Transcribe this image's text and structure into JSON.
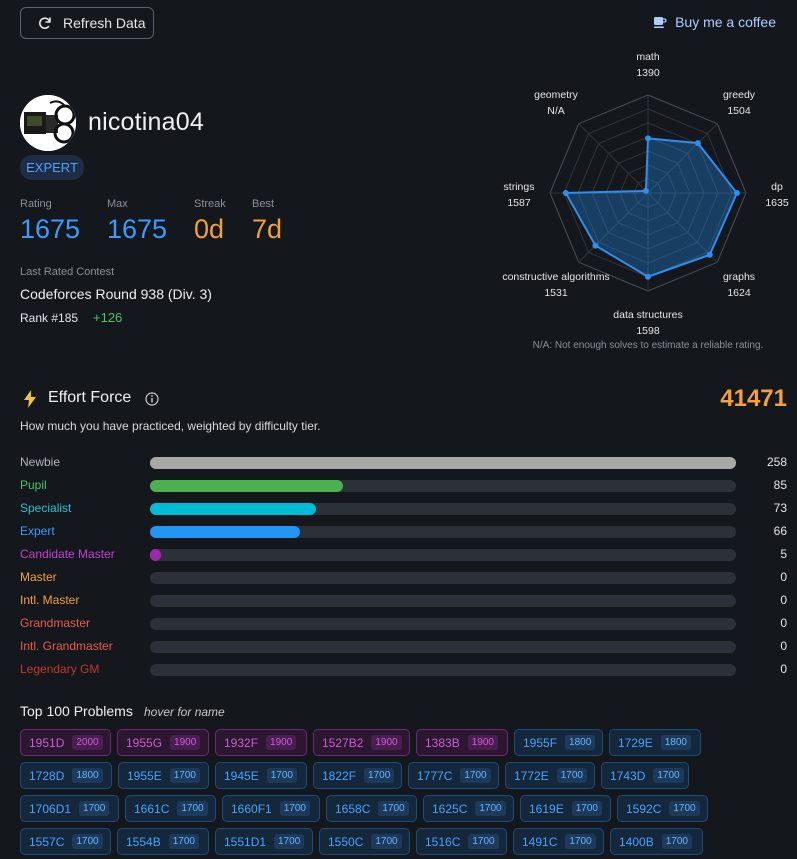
{
  "header": {
    "refresh_label": "Refresh Data",
    "coffee_label": "Buy me a coffee"
  },
  "profile": {
    "handle": "nicotina04",
    "rank": "EXPERT",
    "stats": [
      {
        "label": "Rating",
        "value": "1675",
        "color": "#3b9bff"
      },
      {
        "label": "Max",
        "value": "1675",
        "color": "#3b9bff"
      },
      {
        "label": "Streak",
        "value": "0d",
        "color": "#f4a03a"
      },
      {
        "label": "Best",
        "value": "7d",
        "color": "#f4a03a"
      }
    ],
    "last_contest_label": "Last Rated Contest",
    "last_contest_name": "Codeforces Round 938 (Div. 3)",
    "last_contest_rank": "Rank #185",
    "last_contest_delta": "+126"
  },
  "radar": {
    "axes": [
      {
        "name": "math",
        "value_label": "1390",
        "value": 1390
      },
      {
        "name": "greedy",
        "value_label": "1504",
        "value": 1504
      },
      {
        "name": "dp",
        "value_label": "1635",
        "value": 1635
      },
      {
        "name": "graphs",
        "value_label": "1624",
        "value": 1624
      },
      {
        "name": "data structures",
        "value_label": "1598",
        "value": 1598
      },
      {
        "name": "constructive algorithms",
        "value_label": "1531",
        "value": 1531
      },
      {
        "name": "strings",
        "value_label": "1587",
        "value": 1587
      },
      {
        "name": "geometry",
        "value_label": "N/A",
        "value": null
      }
    ],
    "note": "N/A: Not enough solves to estimate a reliable rating."
  },
  "effort": {
    "title": "Effort Force",
    "total": "41471",
    "description": "How much you have practiced, weighted by difficulty tier.",
    "max": 258,
    "tiers": [
      {
        "name": "Newbie",
        "count": 258,
        "count_label": "258",
        "color": "#b5b5b5",
        "fill": "#a8a8a8"
      },
      {
        "name": "Pupil",
        "count": 85,
        "count_label": "85",
        "color": "#4cc56a",
        "fill": "#4caf50"
      },
      {
        "name": "Specialist",
        "count": 73,
        "count_label": "73",
        "color": "#22c3d8",
        "fill": "#00bcd4"
      },
      {
        "name": "Expert",
        "count": 66,
        "count_label": "66",
        "color": "#3b9bff",
        "fill": "#2196f3"
      },
      {
        "name": "Candidate Master",
        "count": 5,
        "count_label": "5",
        "color": "#c542cf",
        "fill": "#9c27b0"
      },
      {
        "name": "Master",
        "count": 0,
        "count_label": "0",
        "color": "#f4a03a",
        "fill": "#ff9800"
      },
      {
        "name": "Intl. Master",
        "count": 0,
        "count_label": "0",
        "color": "#f4a03a",
        "fill": "#ff9800"
      },
      {
        "name": "Grandmaster",
        "count": 0,
        "count_label": "0",
        "color": "#ef5a4a",
        "fill": "#f44336"
      },
      {
        "name": "Intl. Grandmaster",
        "count": 0,
        "count_label": "0",
        "color": "#ef5a4a",
        "fill": "#f44336"
      },
      {
        "name": "Legendary GM",
        "count": 0,
        "count_label": "0",
        "color": "#c0392b",
        "fill": "#b71c1c"
      }
    ]
  },
  "top_problems": {
    "title": "Top 100 Problems",
    "hint": "hover for name",
    "rows": [
      [
        {
          "id": "1951D",
          "rating": "2000"
        },
        {
          "id": "1955G",
          "rating": "1900"
        },
        {
          "id": "1932F",
          "rating": "1900"
        },
        {
          "id": "1527B2",
          "rating": "1900"
        },
        {
          "id": "1383B",
          "rating": "1900"
        },
        {
          "id": "1955F",
          "rating": "1800"
        },
        {
          "id": "1729E",
          "rating": "1800"
        }
      ],
      [
        {
          "id": "1728D",
          "rating": "1800"
        },
        {
          "id": "1955E",
          "rating": "1700"
        },
        {
          "id": "1945E",
          "rating": "1700"
        },
        {
          "id": "1822F",
          "rating": "1700"
        },
        {
          "id": "1777C",
          "rating": "1700"
        },
        {
          "id": "1772E",
          "rating": "1700"
        },
        {
          "id": "1743D",
          "rating": "1700"
        }
      ],
      [
        {
          "id": "1706D1",
          "rating": "1700"
        },
        {
          "id": "1661C",
          "rating": "1700"
        },
        {
          "id": "1660F1",
          "rating": "1700"
        },
        {
          "id": "1658C",
          "rating": "1700"
        },
        {
          "id": "1625C",
          "rating": "1700"
        },
        {
          "id": "1619E",
          "rating": "1700"
        },
        {
          "id": "1592C",
          "rating": "1700"
        }
      ],
      [
        {
          "id": "1557C",
          "rating": "1700"
        },
        {
          "id": "1554B",
          "rating": "1700"
        },
        {
          "id": "1551D1",
          "rating": "1700"
        },
        {
          "id": "1550C",
          "rating": "1700"
        },
        {
          "id": "1516C",
          "rating": "1700"
        },
        {
          "id": "1491C",
          "rating": "1700"
        },
        {
          "id": "1400B",
          "rating": "1700"
        }
      ]
    ]
  }
}
